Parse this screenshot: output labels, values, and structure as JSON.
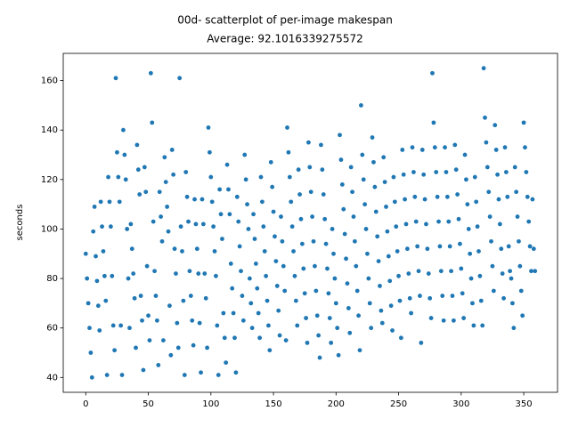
{
  "chart_data": {
    "type": "scatter",
    "title": "00d- scatterplot of per-image makespan",
    "subtitle": "Average: 92.1016339275572",
    "ylabel": "seconds",
    "color": "#1f77b4",
    "xlim": [
      -18,
      377
    ],
    "ylim": [
      34,
      171
    ],
    "xticks": [
      0,
      50,
      100,
      150,
      200,
      250,
      300,
      350
    ],
    "yticks": [
      40,
      60,
      80,
      100,
      120,
      140,
      160
    ],
    "x": [
      0,
      1,
      2,
      3,
      4,
      5,
      6,
      7,
      8,
      9,
      10,
      11,
      12,
      13,
      14,
      15,
      16,
      17,
      18,
      19,
      20,
      21,
      22,
      23,
      24,
      25,
      26,
      27,
      28,
      29,
      30,
      31,
      32,
      33,
      34,
      35,
      36,
      37,
      38,
      39,
      40,
      41,
      42,
      43,
      44,
      45,
      46,
      47,
      48,
      49,
      50,
      51,
      52,
      53,
      54,
      55,
      56,
      57,
      58,
      59,
      60,
      61,
      62,
      63,
      64,
      65,
      66,
      67,
      68,
      69,
      70,
      71,
      72,
      73,
      74,
      75,
      76,
      77,
      78,
      79,
      80,
      81,
      82,
      83,
      84,
      85,
      86,
      87,
      88,
      89,
      90,
      91,
      92,
      93,
      94,
      95,
      96,
      97,
      98,
      99,
      100,
      101,
      102,
      103,
      104,
      105,
      106,
      107,
      108,
      109,
      110,
      111,
      112,
      113,
      114,
      115,
      116,
      117,
      118,
      119,
      120,
      121,
      122,
      123,
      124,
      125,
      126,
      127,
      128,
      129,
      130,
      131,
      132,
      133,
      134,
      135,
      136,
      137,
      138,
      139,
      140,
      141,
      142,
      143,
      144,
      145,
      146,
      147,
      148,
      149,
      150,
      151,
      152,
      153,
      154,
      155,
      156,
      157,
      158,
      159,
      160,
      161,
      162,
      163,
      164,
      165,
      166,
      167,
      168,
      169,
      170,
      171,
      172,
      173,
      174,
      175,
      176,
      177,
      178,
      179,
      180,
      181,
      182,
      183,
      184,
      185,
      186,
      187,
      188,
      189,
      190,
      191,
      192,
      193,
      194,
      195,
      196,
      197,
      198,
      199,
      200,
      201,
      202,
      203,
      204,
      205,
      206,
      207,
      208,
      209,
      210,
      211,
      212,
      213,
      214,
      215,
      216,
      217,
      218,
      219,
      220,
      221,
      222,
      223,
      224,
      225,
      226,
      227,
      228,
      229,
      230,
      231,
      232,
      233,
      234,
      235,
      236,
      237,
      238,
      239,
      240,
      241,
      242,
      243,
      244,
      245,
      246,
      247,
      248,
      249,
      250,
      251,
      252,
      253,
      254,
      255,
      256,
      257,
      258,
      259,
      260,
      261,
      262,
      263,
      264,
      265,
      266,
      267,
      268,
      269,
      270,
      271,
      272,
      273,
      274,
      275,
      276,
      277,
      278,
      279,
      280,
      281,
      282,
      283,
      284,
      285,
      286,
      287,
      288,
      289,
      290,
      291,
      292,
      293,
      294,
      295,
      296,
      297,
      298,
      299,
      300,
      301,
      302,
      303,
      304,
      305,
      306,
      307,
      308,
      309,
      310,
      311,
      312,
      313,
      314,
      315,
      316,
      317,
      318,
      319,
      320,
      321,
      322,
      323,
      324,
      325,
      326,
      327,
      328,
      329,
      330,
      331,
      332,
      333,
      334,
      335,
      336,
      337,
      338,
      339,
      340,
      341,
      342,
      343,
      344,
      345,
      346,
      347,
      348,
      349,
      350,
      351,
      352,
      353,
      354,
      355,
      356,
      357,
      358,
      359
    ],
    "values": [
      90,
      80,
      70,
      60,
      50,
      40,
      99,
      109,
      89,
      79,
      69,
      59,
      111,
      101,
      91,
      81,
      71,
      41,
      121,
      111,
      101,
      81,
      61,
      51,
      161,
      131,
      121,
      111,
      61,
      41,
      140,
      130,
      120,
      100,
      80,
      60,
      102,
      92,
      82,
      72,
      52,
      134,
      124,
      114,
      73,
      63,
      43,
      125,
      115,
      85,
      65,
      55,
      163,
      143,
      103,
      83,
      73,
      63,
      45,
      115,
      105,
      95,
      55,
      129,
      119,
      109,
      99,
      69,
      49,
      132,
      122,
      92,
      82,
      62,
      52,
      161,
      101,
      91,
      71,
      41,
      123,
      113,
      103,
      83,
      73,
      63,
      53,
      112,
      102,
      92,
      82,
      62,
      42,
      112,
      102,
      82,
      72,
      52,
      141,
      131,
      121,
      111,
      101,
      91,
      81,
      61,
      41,
      116,
      106,
      96,
      66,
      56,
      46,
      126,
      116,
      106,
      86,
      76,
      66,
      56,
      42,
      113,
      103,
      93,
      83,
      73,
      63,
      130,
      120,
      110,
      100,
      80,
      70,
      60,
      106,
      96,
      86,
      76,
      66,
      56,
      121,
      111,
      101,
      91,
      81,
      71,
      61,
      51,
      127,
      117,
      107,
      97,
      87,
      77,
      67,
      57,
      105,
      95,
      85,
      75,
      55,
      141,
      131,
      121,
      111,
      101,
      91,
      81,
      71,
      61,
      124,
      114,
      104,
      94,
      84,
      74,
      64,
      54,
      135,
      125,
      115,
      105,
      95,
      85,
      75,
      65,
      57,
      48,
      134,
      124,
      114,
      104,
      94,
      84,
      74,
      64,
      54,
      100,
      90,
      80,
      70,
      60,
      49,
      138,
      128,
      118,
      108,
      98,
      88,
      78,
      68,
      58,
      125,
      115,
      105,
      95,
      85,
      75,
      65,
      51,
      150,
      130,
      120,
      110,
      100,
      90,
      80,
      70,
      60,
      137,
      127,
      117,
      107,
      97,
      87,
      77,
      67,
      62,
      129,
      119,
      109,
      99,
      89,
      79,
      69,
      59,
      121,
      111,
      101,
      91,
      81,
      71,
      56,
      132,
      122,
      112,
      102,
      92,
      82,
      72,
      66,
      133,
      123,
      113,
      103,
      93,
      83,
      73,
      54,
      132,
      122,
      112,
      102,
      92,
      82,
      72,
      64,
      163,
      143,
      133,
      123,
      113,
      103,
      93,
      83,
      73,
      63,
      133,
      123,
      113,
      103,
      93,
      83,
      73,
      63,
      134,
      124,
      114,
      104,
      94,
      84,
      74,
      64,
      130,
      120,
      110,
      100,
      90,
      80,
      70,
      61,
      121,
      111,
      101,
      91,
      81,
      71,
      61,
      165,
      145,
      135,
      125,
      115,
      105,
      95,
      85,
      75,
      142,
      132,
      122,
      112,
      102,
      92,
      82,
      72,
      133,
      123,
      113,
      93,
      83,
      80,
      70,
      60,
      125,
      115,
      105,
      95,
      85,
      75,
      65,
      143,
      133,
      123,
      113,
      103,
      93,
      83,
      112,
      92,
      83
    ]
  }
}
